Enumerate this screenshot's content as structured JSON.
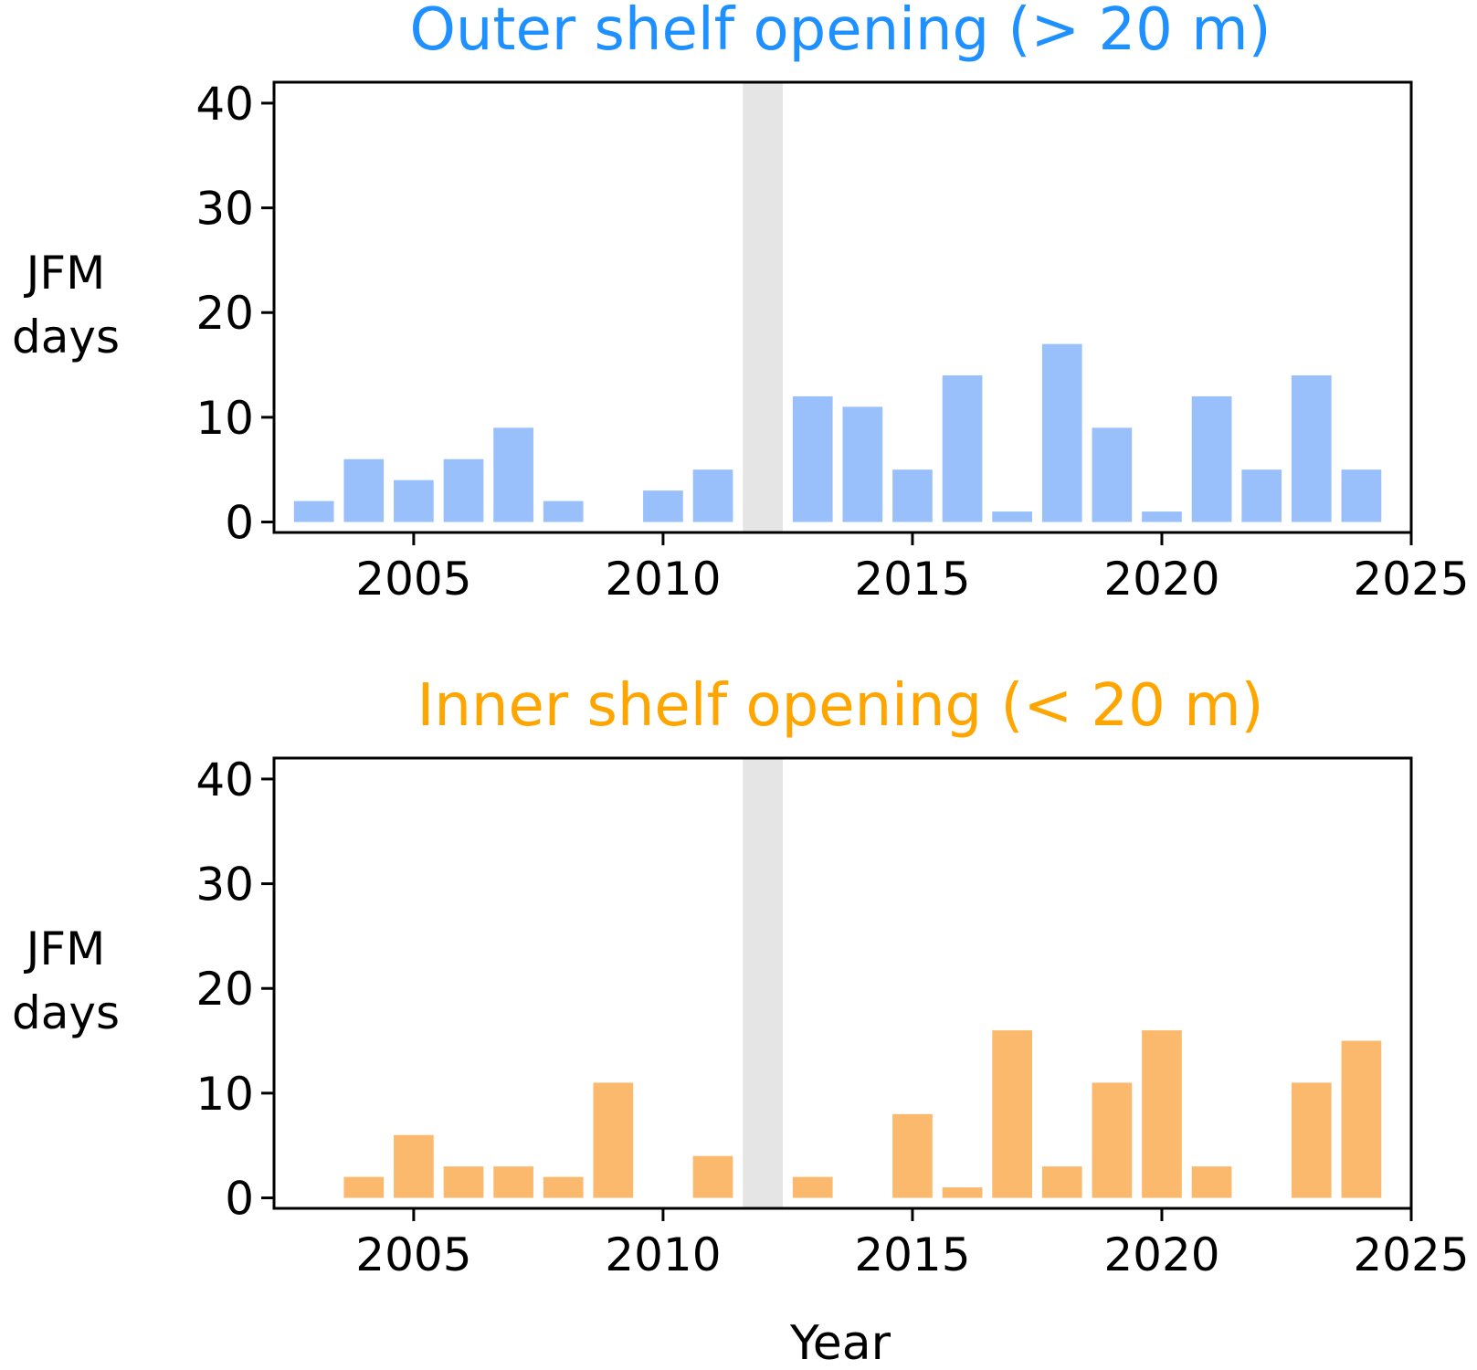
{
  "chart_data": [
    {
      "type": "bar",
      "title": "Outer shelf opening (> 20 m)",
      "title_color": "#1e90ff",
      "bar_color": "#99c0fb",
      "ylabel_lines": [
        "JFM",
        "days"
      ],
      "xlabel": "",
      "xlim": [
        2002.2,
        2025
      ],
      "ylim": [
        -1,
        42
      ],
      "xticks": [
        2005,
        2010,
        2015,
        2020,
        2025
      ],
      "yticks": [
        0,
        10,
        20,
        30,
        40
      ],
      "shaded_span": [
        2011.6,
        2012.4
      ],
      "shaded_color": "#e5e5e5",
      "grid": false,
      "x": [
        2003,
        2004,
        2005,
        2006,
        2007,
        2008,
        2009,
        2010,
        2011,
        2013,
        2014,
        2015,
        2016,
        2017,
        2018,
        2019,
        2020,
        2021,
        2022,
        2023,
        2024
      ],
      "values": [
        2,
        6,
        4,
        6,
        9,
        2,
        0,
        3,
        5,
        12,
        11,
        5,
        14,
        1,
        17,
        9,
        1,
        12,
        5,
        14,
        5
      ]
    },
    {
      "type": "bar",
      "title": "Inner shelf opening (< 20 m)",
      "title_color": "#ffa500",
      "bar_color": "#fbb96e",
      "ylabel_lines": [
        "JFM",
        "days"
      ],
      "xlabel": "Year",
      "xlim": [
        2002.2,
        2025
      ],
      "ylim": [
        -1,
        42
      ],
      "xticks": [
        2005,
        2010,
        2015,
        2020,
        2025
      ],
      "yticks": [
        0,
        10,
        20,
        30,
        40
      ],
      "shaded_span": [
        2011.6,
        2012.4
      ],
      "shaded_color": "#e5e5e5",
      "grid": false,
      "x": [
        2003,
        2004,
        2005,
        2006,
        2007,
        2008,
        2009,
        2010,
        2011,
        2013,
        2014,
        2015,
        2016,
        2017,
        2018,
        2019,
        2020,
        2021,
        2022,
        2023,
        2024
      ],
      "values": [
        0,
        2,
        6,
        3,
        3,
        2,
        11,
        0,
        4,
        2,
        0,
        8,
        1,
        16,
        3,
        11,
        16,
        3,
        0,
        11,
        15
      ]
    }
  ]
}
